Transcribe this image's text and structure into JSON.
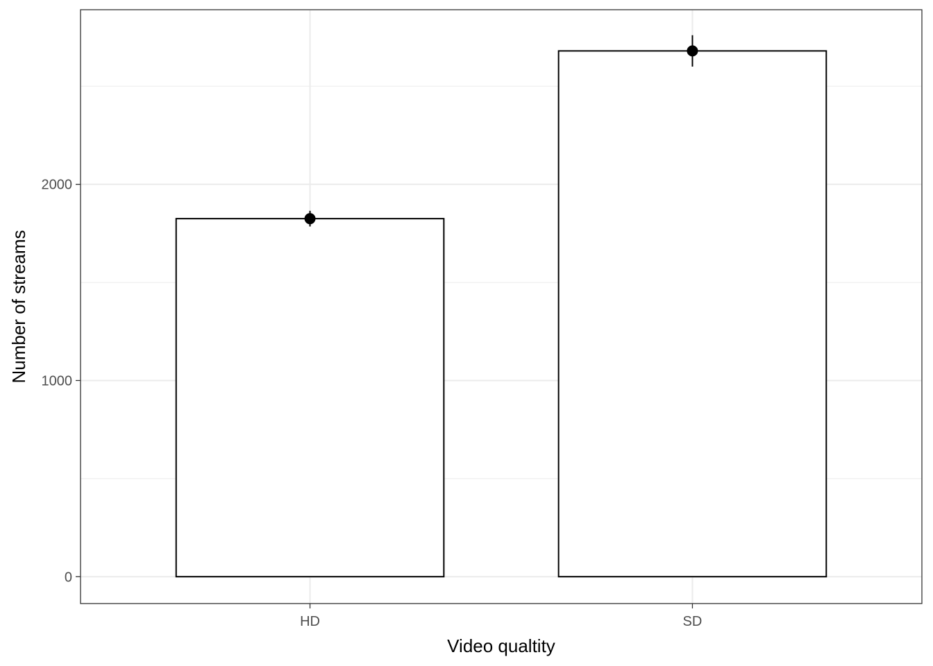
{
  "chart_data": {
    "type": "bar",
    "title": "",
    "xlabel": "Video qualtity",
    "ylabel": "Number of streams",
    "categories": [
      "HD",
      "SD"
    ],
    "values": [
      1825,
      2680
    ],
    "error_bars": [
      {
        "category": "HD",
        "low": 1785,
        "high": 1865
      },
      {
        "category": "SD",
        "low": 2600,
        "high": 2760
      }
    ],
    "ylim": [
      -137,
      2890
    ],
    "yticks": [
      0,
      1000,
      2000
    ],
    "ytick_labels": [
      "0",
      "1000",
      "2000"
    ],
    "grid": true,
    "legend": "none",
    "colors": {
      "bar_fill": "#ffffff",
      "bar_stroke": "#000000",
      "point": "#000000",
      "grid": "#ebebeb",
      "panel_border": "#333333"
    }
  }
}
